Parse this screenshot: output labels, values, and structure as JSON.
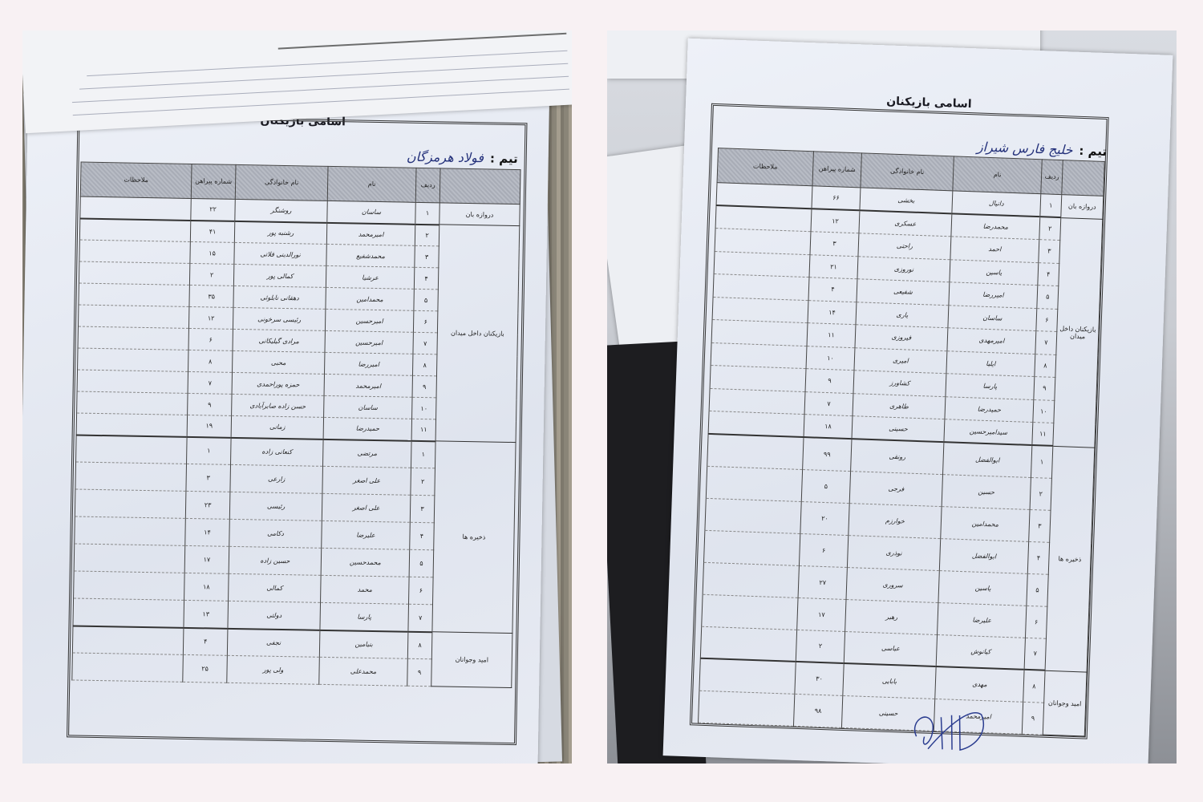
{
  "photos": [
    {
      "title": "اسامی بازیکنان",
      "team_label": "تیم :",
      "team_value": "فولاد هرمزگان",
      "headers": [
        "",
        "ردیف",
        "نام",
        "نام خانوادگی",
        "شماره پیراهن",
        "ملاحظات"
      ],
      "sections": [
        {
          "label": "دروازه بان",
          "rows": [
            {
              "no": "۱",
              "name": "ساسان",
              "surname": "روشنگر",
              "jersey": "۲۲"
            }
          ]
        },
        {
          "label": "بازیکنان داخل میدان",
          "rows": [
            {
              "no": "۲",
              "name": "امیرمحمد",
              "surname": "رشنبه پور",
              "jersey": "۴۱"
            },
            {
              "no": "۳",
              "name": "محمدشفیع",
              "surname": "نورالدینی قلاتی",
              "jersey": "۱۵"
            },
            {
              "no": "۴",
              "name": "عرشیا",
              "surname": "کمالی پور",
              "jersey": "۲"
            },
            {
              "no": "۵",
              "name": "محمدامین",
              "surname": "دهقانی نابلوئی",
              "jersey": "۳۵"
            },
            {
              "no": "۶",
              "name": "امیرحسین",
              "surname": "رئیسی سرخونی",
              "jersey": "۱۲"
            },
            {
              "no": "۷",
              "name": "امیرحسین",
              "surname": "مرادی گیلیکانی",
              "jersey": "۶"
            },
            {
              "no": "۸",
              "name": "امیررضا",
              "surname": "محبی",
              "jersey": "۸"
            },
            {
              "no": "۹",
              "name": "امیرمحمد",
              "surname": "حمزه پوراحمدی",
              "jersey": "۷"
            },
            {
              "no": "۱۰",
              "name": "ساسان",
              "surname": "حسن زاده صابرآبادی",
              "jersey": "۹"
            },
            {
              "no": "۱۱",
              "name": "حمیدرضا",
              "surname": "زمانی",
              "jersey": "۱۹"
            }
          ]
        },
        {
          "label": "ذخیره ها",
          "rows": [
            {
              "no": "۱",
              "name": "مرتضی",
              "surname": "کنعانی زاده",
              "jersey": "۱"
            },
            {
              "no": "۲",
              "name": "علی اصغر",
              "surname": "زارعی",
              "jersey": "۳"
            },
            {
              "no": "۳",
              "name": "علی اصغر",
              "surname": "رئیسی",
              "jersey": "۲۳"
            },
            {
              "no": "۴",
              "name": "علیرضا",
              "surname": "دکامی",
              "jersey": "۱۴"
            },
            {
              "no": "۵",
              "name": "محمدحسین",
              "surname": "حسین زاده",
              "jersey": "۱۷"
            },
            {
              "no": "۶",
              "name": "محمد",
              "surname": "کمالی",
              "jersey": "۱۸"
            },
            {
              "no": "۷",
              "name": "پارسا",
              "surname": "دولتی",
              "jersey": "۱۳"
            }
          ]
        },
        {
          "label": "امید وجوانان",
          "rows": [
            {
              "no": "۸",
              "name": "بنیامین",
              "surname": "نجفی",
              "jersey": "۴"
            },
            {
              "no": "۹",
              "name": "محمدعلی",
              "surname": "ولی پور",
              "jersey": "۲۵"
            }
          ]
        }
      ]
    },
    {
      "title": "اسامی بازیکنان",
      "team_label": "تیم :",
      "team_value": "خلیج فارس شیراز",
      "headers": [
        "",
        "ردیف",
        "نام",
        "نام خانوادگی",
        "شماره پیراهن",
        "ملاحظات"
      ],
      "sections": [
        {
          "label": "دروازه بان",
          "rows": [
            {
              "no": "۱",
              "name": "دانیال",
              "surname": "بخشی",
              "jersey": "۶۶"
            }
          ]
        },
        {
          "label": "بازیکنان داخل میدان",
          "rows": [
            {
              "no": "۲",
              "name": "محمدرضا",
              "surname": "عسکری",
              "jersey": "۱۲"
            },
            {
              "no": "۳",
              "name": "احمد",
              "surname": "راحتی",
              "jersey": "۳"
            },
            {
              "no": "۴",
              "name": "یاسین",
              "surname": "نوروزی",
              "jersey": "۲۱"
            },
            {
              "no": "۵",
              "name": "امیررضا",
              "surname": "شفیعی",
              "jersey": "۴"
            },
            {
              "no": "۶",
              "name": "ساسان",
              "surname": "یاری",
              "jersey": "۱۴"
            },
            {
              "no": "۷",
              "name": "امیرمهدی",
              "surname": "فیروزی",
              "jersey": "۱۱"
            },
            {
              "no": "۸",
              "name": "ایلیا",
              "surname": "امیری",
              "jersey": "۱۰"
            },
            {
              "no": "۹",
              "name": "پارسا",
              "surname": "کشاورز",
              "jersey": "۹"
            },
            {
              "no": "۱۰",
              "name": "حمیدرضا",
              "surname": "طاهری",
              "jersey": "۷"
            },
            {
              "no": "۱۱",
              "name": "سیدامیرحسین",
              "surname": "حسینی",
              "jersey": "۱۸"
            }
          ]
        },
        {
          "label": "ذخیره ها",
          "rows": [
            {
              "no": "۱",
              "name": "ابوالفضل",
              "surname": "رونقی",
              "jersey": "۹۹"
            },
            {
              "no": "۲",
              "name": "حسین",
              "surname": "فرجی",
              "jersey": "۵"
            },
            {
              "no": "۳",
              "name": "محمدامین",
              "surname": "خوارزم",
              "jersey": "۲۰"
            },
            {
              "no": "۴",
              "name": "ابوالفضل",
              "surname": "نوذری",
              "jersey": "۶"
            },
            {
              "no": "۵",
              "name": "یاسین",
              "surname": "سروری",
              "jersey": "۲۷"
            },
            {
              "no": "۶",
              "name": "علیرضا",
              "surname": "رهبر",
              "jersey": "۱۷"
            },
            {
              "no": "۷",
              "name": "کیانوش",
              "surname": "عباسی",
              "jersey": "۲"
            }
          ]
        },
        {
          "label": "امید وجوانان",
          "rows": [
            {
              "no": "۸",
              "name": "مهدی",
              "surname": "بابایی",
              "jersey": "۳۰"
            },
            {
              "no": "۹",
              "name": "امیرمحمد",
              "surname": "حسینی",
              "jersey": "۹۸"
            }
          ]
        }
      ]
    }
  ],
  "colors": {
    "background": "#f8f1f3",
    "ink": "#243a8a",
    "paper": "#e8ebf3"
  }
}
